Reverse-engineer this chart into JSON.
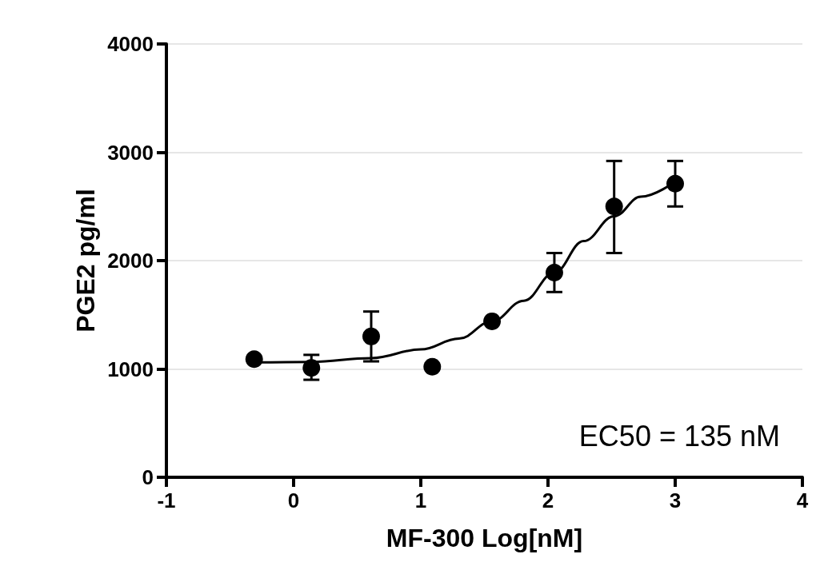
{
  "chart_data": {
    "type": "scatter",
    "xlabel": "MF-300 Log[nM]",
    "ylabel": "PGE2 pg/ml",
    "annotations": [
      "EC50 = 135 nM"
    ],
    "xlim": [
      -1,
      4
    ],
    "xticks": [
      -1,
      0,
      1,
      2,
      3,
      4
    ],
    "ylim": [
      0,
      4000
    ],
    "yticks": [
      0,
      1000,
      2000,
      3000,
      4000
    ],
    "grid": "y",
    "marker": "circle",
    "series": [
      {
        "color": "#000000",
        "x": [
          -0.31,
          0.14,
          0.61,
          1.09,
          1.56,
          2.05,
          2.52,
          3.0
        ],
        "values": [
          1090,
          1010,
          1300,
          1020,
          1440,
          1890,
          2500,
          2710
        ],
        "errors": [
          null,
          [
            900,
            1130
          ],
          [
            1070,
            1530
          ],
          null,
          null,
          [
            1710,
            2070
          ],
          [
            2070,
            2920
          ],
          [
            2500,
            2920
          ]
        ]
      },
      {
        "type": "line",
        "color": "#000000",
        "marker": "none",
        "line_style": "solid",
        "x": [
          -0.31,
          0.14,
          0.61,
          1.0,
          1.3,
          1.56,
          1.81,
          2.05,
          2.28,
          2.52,
          2.73,
          3.0
        ],
        "values": [
          1060,
          1065,
          1100,
          1180,
          1280,
          1440,
          1630,
          1890,
          2180,
          2410,
          2590,
          2730
        ]
      }
    ]
  }
}
